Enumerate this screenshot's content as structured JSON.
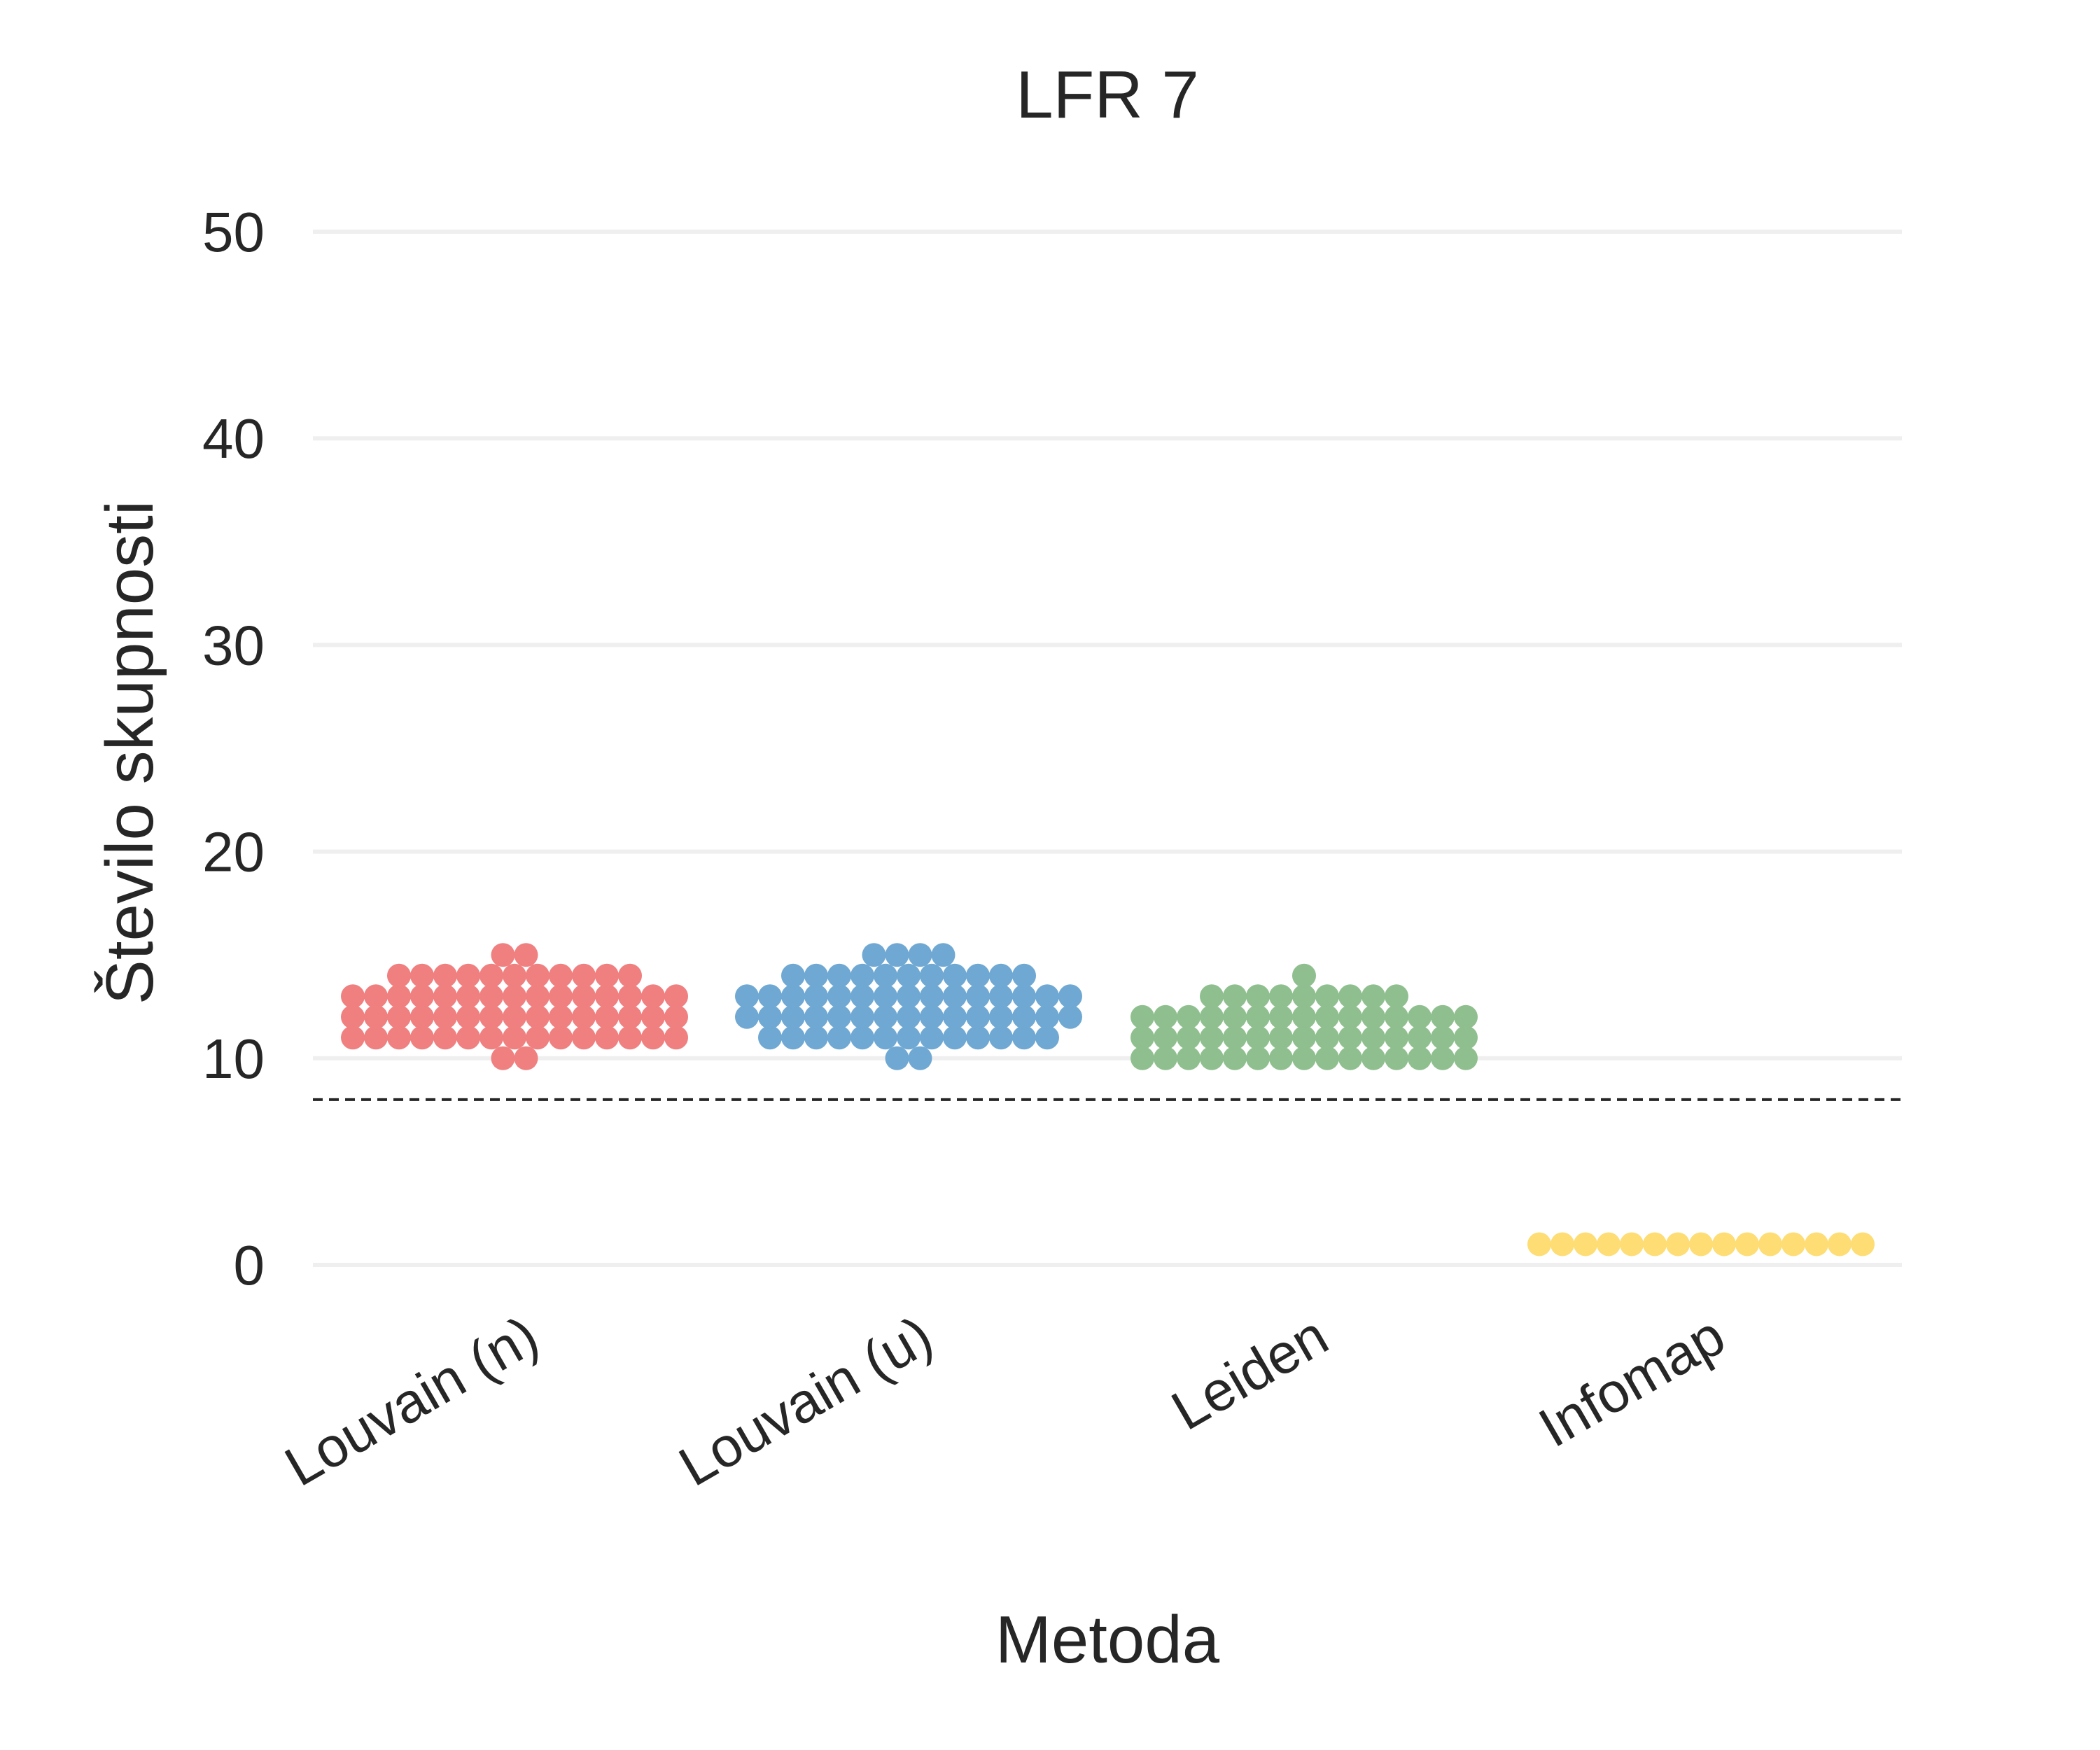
{
  "chart_data": {
    "type": "scatter",
    "subtype": "swarm",
    "title": "LFR 7",
    "xlabel": "Metoda",
    "ylabel": "Število skupnosti",
    "ylim": [
      -4,
      55
    ],
    "yticks": [
      0,
      10,
      20,
      30,
      40,
      50
    ],
    "grid": "horizontal",
    "reference_line": 8,
    "categories": [
      "Louvain (n)",
      "Louvain (u)",
      "Leiden",
      "Infomap"
    ],
    "colors": [
      "#f07f80",
      "#6fa8d2",
      "#8fbf8f",
      "#fddd74"
    ],
    "series": [
      {
        "values": [
          10,
          10,
          11,
          11,
          11,
          11,
          11,
          11,
          11,
          11,
          11,
          11,
          11,
          11,
          11,
          11,
          11,
          12,
          12,
          12,
          12,
          12,
          12,
          12,
          12,
          12,
          12,
          12,
          12,
          12,
          12,
          12,
          13,
          13,
          13,
          13,
          13,
          13,
          13,
          13,
          13,
          13,
          13,
          13,
          13,
          13,
          13,
          14,
          14,
          14,
          14,
          14,
          14,
          14,
          14,
          14,
          14,
          14,
          15,
          15
        ]
      },
      {
        "values": [
          10,
          10,
          11,
          11,
          11,
          11,
          11,
          11,
          11,
          11,
          11,
          11,
          11,
          11,
          11,
          12,
          12,
          12,
          12,
          12,
          12,
          12,
          12,
          12,
          12,
          12,
          12,
          12,
          12,
          12,
          13,
          13,
          13,
          13,
          13,
          13,
          13,
          13,
          13,
          13,
          13,
          13,
          13,
          13,
          13,
          14,
          14,
          14,
          14,
          14,
          14,
          14,
          14,
          14,
          14,
          14,
          15,
          15,
          15,
          15
        ]
      },
      {
        "values": [
          10,
          10,
          10,
          10,
          10,
          10,
          10,
          10,
          10,
          10,
          10,
          10,
          10,
          10,
          10,
          11,
          11,
          11,
          11,
          11,
          11,
          11,
          11,
          11,
          11,
          11,
          11,
          11,
          11,
          11,
          12,
          12,
          12,
          12,
          12,
          12,
          12,
          12,
          12,
          12,
          12,
          12,
          12,
          12,
          12,
          13,
          13,
          13,
          13,
          13,
          13,
          13,
          13,
          13,
          14
        ]
      },
      {
        "values": [
          1,
          1,
          1,
          1,
          1,
          1,
          1,
          1,
          1,
          1,
          1,
          1,
          1,
          1,
          1
        ]
      }
    ]
  }
}
